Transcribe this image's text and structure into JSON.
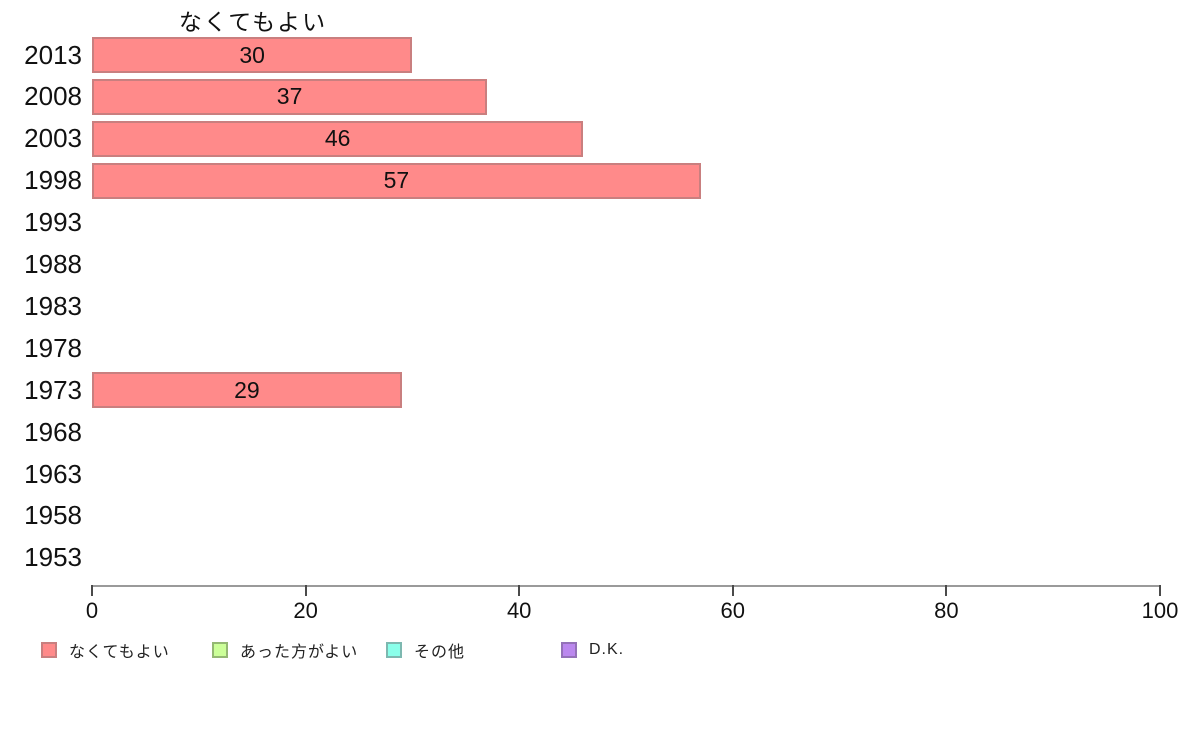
{
  "chart_data": {
    "type": "bar",
    "orientation": "horizontal",
    "title": "なくてもよい",
    "categories": [
      "2013",
      "2008",
      "2003",
      "1998",
      "1993",
      "1988",
      "1983",
      "1978",
      "1973",
      "1968",
      "1963",
      "1958",
      "1953"
    ],
    "series": [
      {
        "name": "なくてもよい",
        "color": "#ff8a8a",
        "border_color": "#c97f7f",
        "values": [
          30,
          37,
          46,
          57,
          null,
          null,
          null,
          null,
          29,
          null,
          null,
          null,
          null
        ]
      }
    ],
    "legend": [
      {
        "label": "なくてもよい",
        "color": "#ff8a8a",
        "border_color": "#c97f7f"
      },
      {
        "label": "あった方がよい",
        "color": "#ccff99",
        "border_color": "#94b873"
      },
      {
        "label": "その他",
        "color": "#8affea",
        "border_color": "#7db8b0"
      },
      {
        "label": "D.K.",
        "color": "#bb88ee",
        "border_color": "#9472b8"
      }
    ],
    "xlim": [
      0,
      100
    ],
    "xticks": [
      0,
      20,
      40,
      60,
      80,
      100
    ],
    "grid": false,
    "legend_position": "bottom",
    "axis_color": "#9a9a9a",
    "tick_color": "#4a4a4a",
    "text_color": "#111111"
  }
}
